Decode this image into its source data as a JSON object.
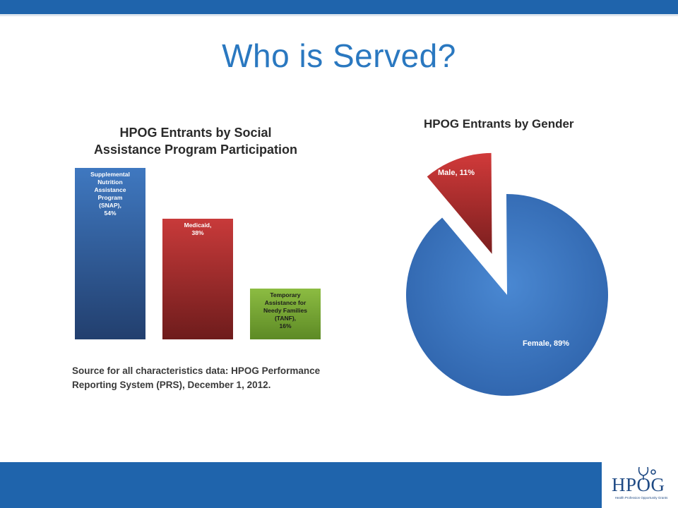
{
  "slide": {
    "title": "Who is Served?"
  },
  "bar_chart": {
    "title_line1": "HPOG Entrants by Social",
    "title_line2": "Assistance Program Participation",
    "source": "Source for all characteristics data: HPOG Performance Reporting System (PRS), December 1, 2012."
  },
  "pie_chart": {
    "title": "HPOG Entrants by Gender"
  },
  "logo": {
    "text": "HPOG",
    "subtitle": "Health Profession Opportunity Grants"
  },
  "colors": {
    "brand_blue": "#1f64ac",
    "title_blue": "#2a78c0",
    "bar_blue": "#3568ae",
    "bar_red": "#b83232",
    "bar_green": "#7dab3a",
    "pie_blue": "#3d7cc9",
    "pie_red": "#c13434"
  },
  "chart_data": [
    {
      "type": "bar",
      "title": "HPOG Entrants by Social Assistance Program Participation",
      "categories": [
        [
          "Supplemental",
          "Nutrition",
          "Assistance",
          "Program",
          "(SNAP),",
          "54%"
        ],
        [
          "Medicaid,",
          "38%"
        ],
        [
          "Temporary",
          "Assistance for",
          "Needy Families",
          "(TANF),",
          "16%"
        ]
      ],
      "values": [
        54,
        38,
        16
      ],
      "colors": [
        "#3568ae",
        "#b83232",
        "#7dab3a"
      ],
      "grid": false,
      "legend": "none"
    },
    {
      "type": "pie",
      "title": "HPOG Entrants by Gender",
      "labels": [
        "Male, 11%",
        "Female, 89%"
      ],
      "values": [
        11,
        89
      ],
      "colors": [
        "#c13434",
        "#3d7cc9"
      ],
      "exploded": "Male"
    }
  ]
}
